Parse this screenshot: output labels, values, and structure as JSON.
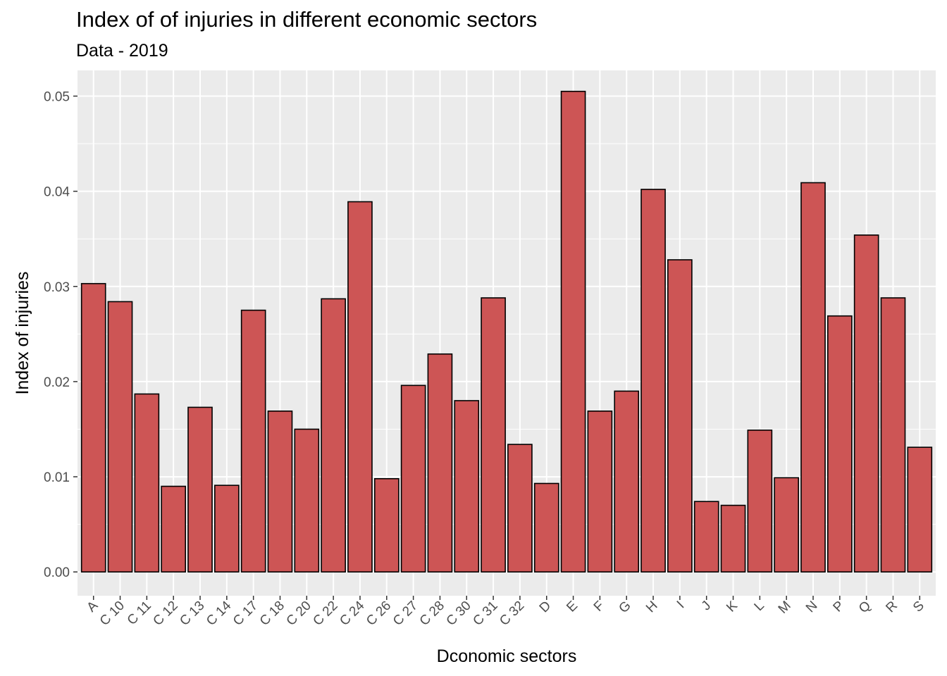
{
  "chart_data": {
    "type": "bar",
    "title": "Index of of injuries in different economic sectors",
    "subtitle": "Data - 2019",
    "xlabel": "Dconomic sectors",
    "ylabel": "Index of injuries",
    "categories": [
      "A",
      "C 10",
      "C 11",
      "C 12",
      "C 13",
      "C 14",
      "C 17",
      "C 18",
      "C 20",
      "C 22",
      "C 24",
      "C 26",
      "C 27",
      "C 28",
      "C 30",
      "C 31",
      "C 32",
      "D",
      "E",
      "F",
      "G",
      "H",
      "I",
      "J",
      "K",
      "L",
      "M",
      "N",
      "P",
      "Q",
      "R",
      "S"
    ],
    "values": [
      0.0303,
      0.0284,
      0.0187,
      0.009,
      0.0173,
      0.0091,
      0.0275,
      0.0169,
      0.015,
      0.0287,
      0.0389,
      0.0098,
      0.0196,
      0.0229,
      0.018,
      0.0288,
      0.0134,
      0.0093,
      0.0505,
      0.0169,
      0.019,
      0.0402,
      0.0328,
      0.0074,
      0.007,
      0.0149,
      0.0099,
      0.0409,
      0.0269,
      0.0354,
      0.0288,
      0.0131
    ],
    "yticks": [
      "0.00",
      "0.01",
      "0.02",
      "0.03",
      "0.04",
      "0.05"
    ],
    "ylim": [
      -0.0025,
      0.0527
    ],
    "grid": true,
    "legend": "none",
    "colors": {
      "bar_fill": "#CD5555",
      "bar_stroke": "#000000",
      "panel_bg": "#EBEBEB",
      "grid": "#FFFFFF"
    }
  }
}
